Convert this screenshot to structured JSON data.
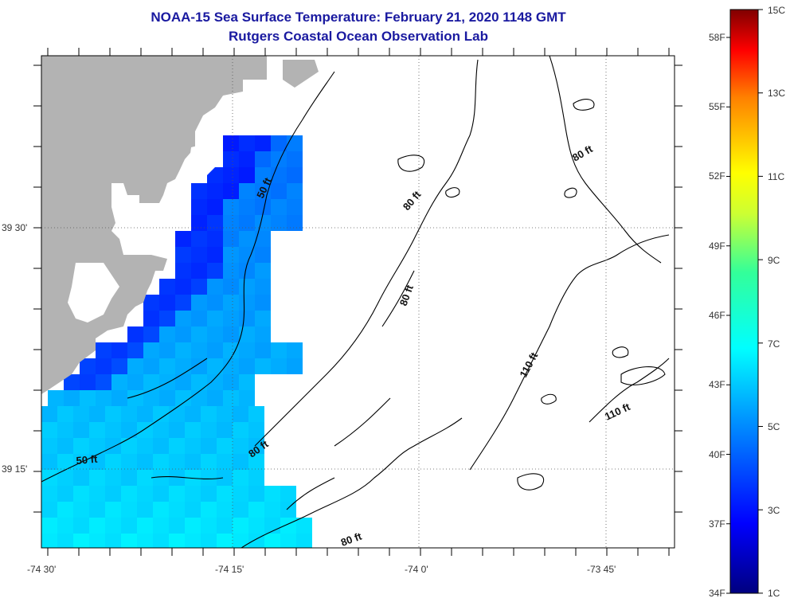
{
  "title": {
    "line1": "NOAA-15 Sea Surface Temperature:  February 21, 2020 1148 GMT",
    "line2": "Rutgers Coastal Ocean Observation Lab"
  },
  "colors": {
    "title": "#1a1aa0",
    "land": "#b3b3b3",
    "contour": "#000000",
    "grid": "#555555"
  },
  "map": {
    "lon_labels": [
      "-74 30'",
      "-74 15'",
      "-74 0'",
      "-73 45'"
    ],
    "lat_labels": [
      "39 30'",
      "39 15'"
    ],
    "contour_labels": [
      "50 ft",
      "50 ft",
      "80 ft",
      "80 ft",
      "80 ft",
      "80 ft",
      "80 ft",
      "110 ft",
      "110 ft"
    ]
  },
  "colorbar": {
    "fahrenheit": [
      "58F",
      "55F",
      "52F",
      "49F",
      "46F",
      "43F",
      "40F",
      "37F",
      "34F"
    ],
    "celsius": [
      "15C",
      "13C",
      "11C",
      "9C",
      "7C",
      "5C",
      "3C",
      "1C"
    ]
  }
}
